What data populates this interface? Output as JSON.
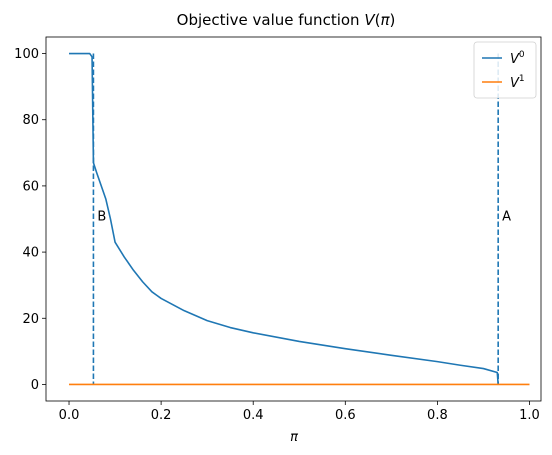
{
  "chart_data": {
    "type": "line",
    "title": "Objective value function V(π)",
    "xlabel": "π",
    "ylabel": "",
    "xlim": [
      -0.05,
      1.025
    ],
    "ylim": [
      -5,
      105
    ],
    "xticks": [
      0.0,
      0.2,
      0.4,
      0.6,
      0.8,
      1.0
    ],
    "xtick_labels": [
      "0.0",
      "0.2",
      "0.4",
      "0.6",
      "0.8",
      "1.0"
    ],
    "yticks": [
      0,
      20,
      40,
      60,
      80,
      100
    ],
    "ytick_labels": [
      "0",
      "20",
      "40",
      "60",
      "80",
      "100"
    ],
    "grid": false,
    "legend_position": "top-right",
    "series": [
      {
        "name": "V⁰",
        "color": "#1f77b4",
        "x": [
          0.0,
          0.045,
          0.05,
          0.053,
          0.06,
          0.07,
          0.08,
          0.09,
          0.1,
          0.12,
          0.14,
          0.16,
          0.18,
          0.19,
          0.2,
          0.25,
          0.3,
          0.35,
          0.4,
          0.5,
          0.6,
          0.7,
          0.8,
          0.85,
          0.9,
          0.93,
          0.932
        ],
        "y": [
          100,
          100,
          99,
          67,
          64,
          60,
          56,
          50,
          43,
          38.5,
          34.5,
          31,
          28,
          27,
          26,
          22.3,
          19.3,
          17.2,
          15.6,
          13,
          10.8,
          8.8,
          6.9,
          5.8,
          4.8,
          3.6,
          0
        ]
      },
      {
        "name": "V¹",
        "color": "#ff7f0e",
        "x": [
          0.0,
          1.0
        ],
        "y": [
          0,
          0
        ]
      }
    ],
    "vlines": [
      {
        "x": 0.053,
        "ymin": 0,
        "ymax": 100,
        "color": "#1f77b4",
        "style": "dashed",
        "label": "B",
        "label_y": 51
      },
      {
        "x": 0.932,
        "ymin": 0,
        "ymax": 100,
        "color": "#1f77b4",
        "style": "dashed",
        "label": "A",
        "label_y": 51
      }
    ]
  }
}
